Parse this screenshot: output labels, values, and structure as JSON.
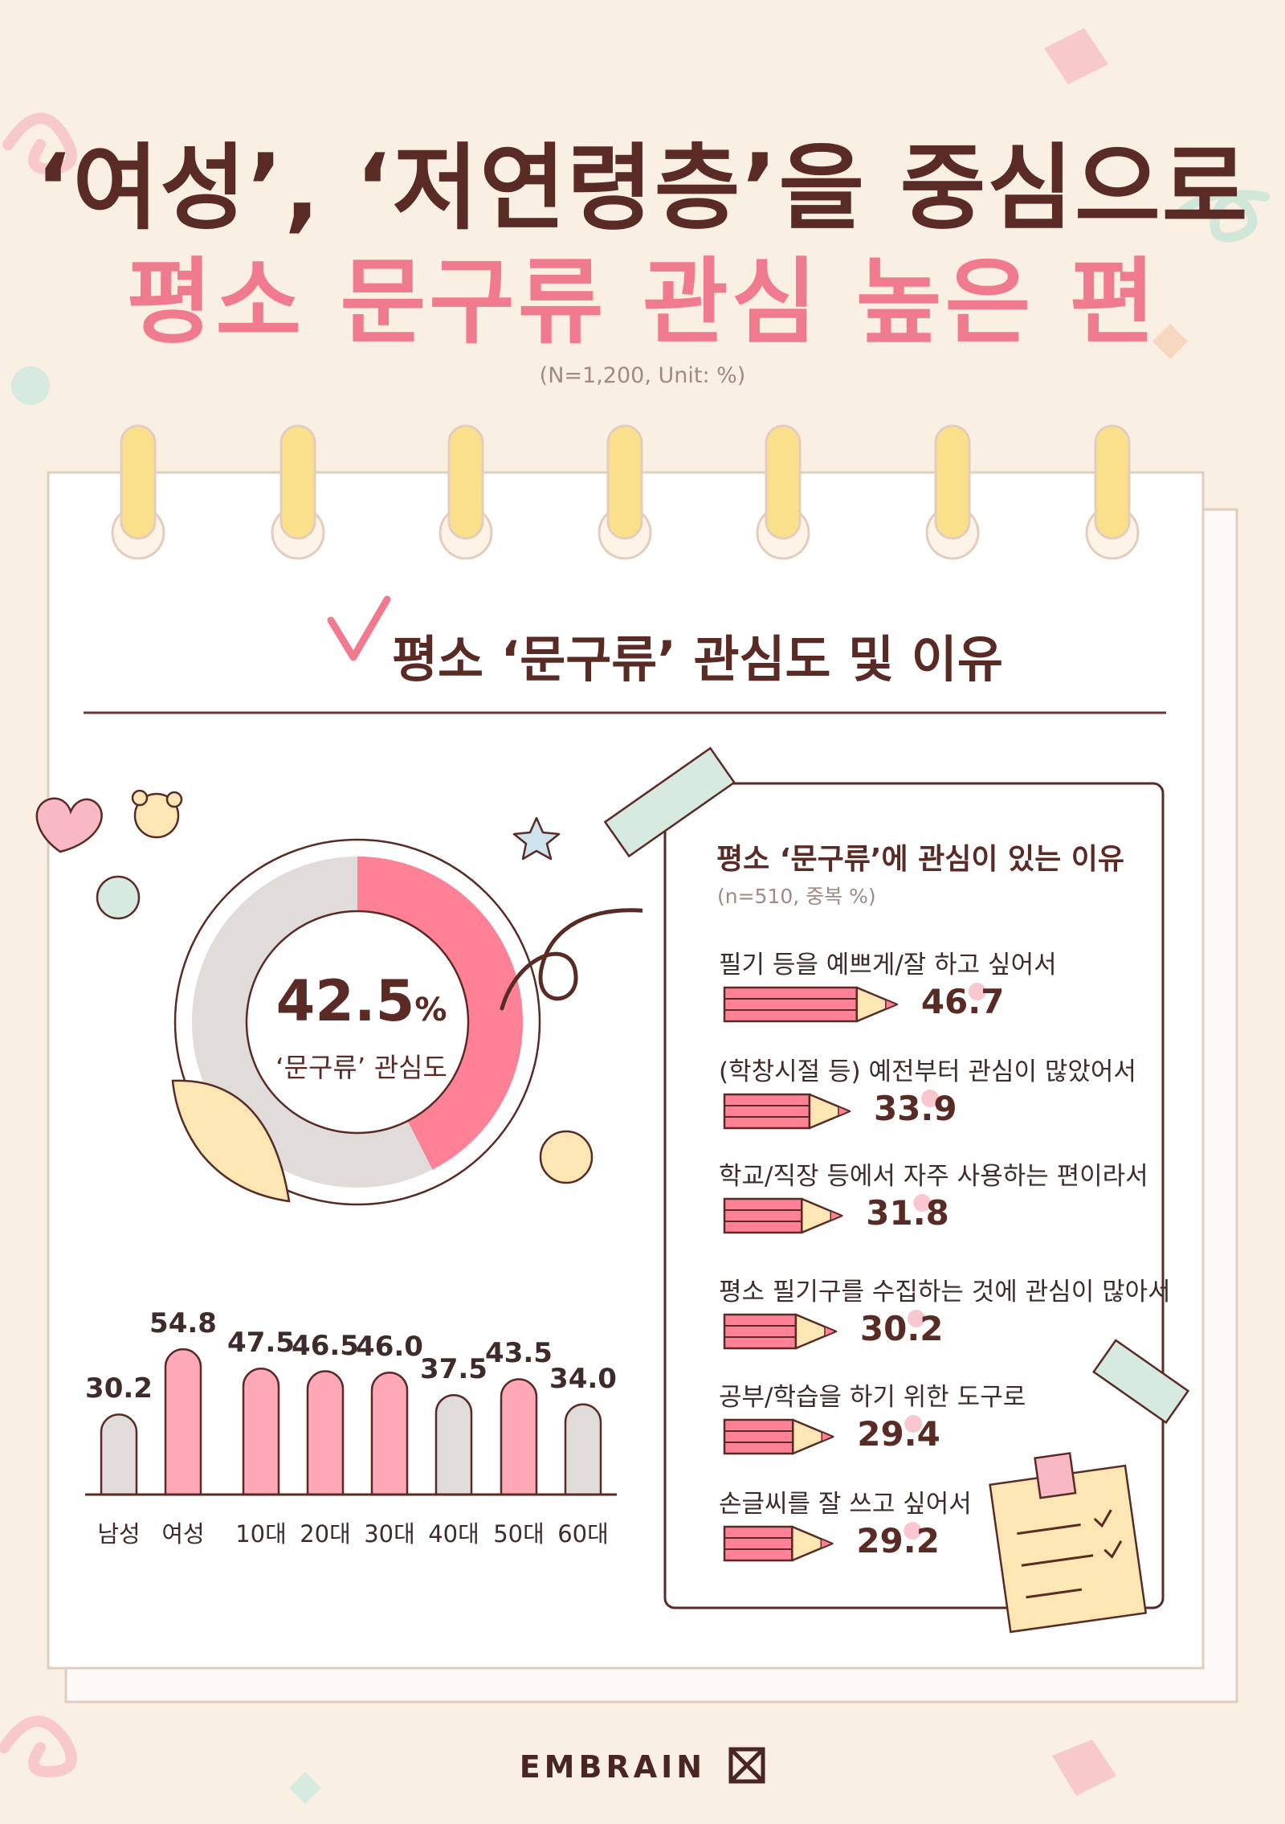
{
  "title_line1": "‘여성’, ‘저연령층’을 중심으로",
  "title_line2": "평소 문구류 관심 높은 편",
  "sample_note": "(N=1,200, Unit: %)",
  "section_title": "평소 ‘문구류’ 관심도 및 이유",
  "brand": "EMBRAIN",
  "colors": {
    "background": "#f9efe2",
    "pink": "#f07a8e",
    "gray": "#e0dcda",
    "brown": "#5a2a24",
    "yellow": "#fbe59a"
  },
  "chart_data": [
    {
      "type": "pie",
      "subtype": "donut",
      "label": "‘문구류’ 관심도",
      "value": 42.5,
      "value_text": "42.5",
      "unit": "%"
    },
    {
      "type": "bar",
      "categories": [
        "남성",
        "여성",
        "10대",
        "20대",
        "30대",
        "40대",
        "50대",
        "60대"
      ],
      "values": [
        30.2,
        54.8,
        47.5,
        46.5,
        46.0,
        37.5,
        43.5,
        34.0
      ],
      "value_labels": [
        "30.2",
        "54.8",
        "47.5",
        "46.5",
        "46.0",
        "37.5",
        "43.5",
        "34.0"
      ],
      "highlight": [
        false,
        true,
        true,
        true,
        true,
        false,
        true,
        false
      ]
    },
    {
      "type": "bar",
      "orientation": "horizontal",
      "title": "평소 ‘문구류’에 관심이 있는 이유",
      "subtitle": "(n=510, 중복 %)",
      "categories": [
        "필기 등을 예쁘게/잘 하고 싶어서",
        "(학창시절 등) 예전부터 관심이 많았어서",
        "학교/직장 등에서 자주 사용하는 편이라서",
        "평소 필기구를 수집하는 것에 관심이 많아서",
        "공부/학습을 하기 위한 도구로",
        "손글씨를 잘 쓰고 싶어서"
      ],
      "values": [
        46.7,
        33.9,
        31.8,
        30.2,
        29.4,
        29.2
      ],
      "value_labels": [
        "46.7",
        "33.9",
        "31.8",
        "30.2",
        "29.4",
        "29.2"
      ]
    }
  ]
}
